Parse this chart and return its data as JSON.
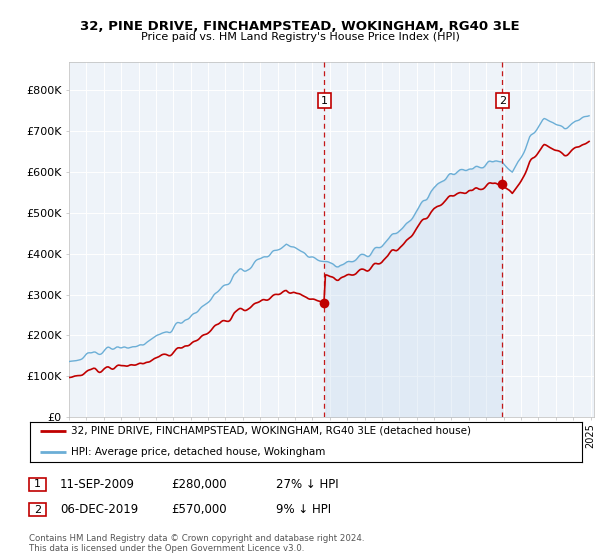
{
  "title": "32, PINE DRIVE, FINCHAMPSTEAD, WOKINGHAM, RG40 3LE",
  "subtitle": "Price paid vs. HM Land Registry's House Price Index (HPI)",
  "ylabel_ticks": [
    "£0",
    "£100K",
    "£200K",
    "£300K",
    "£400K",
    "£500K",
    "£600K",
    "£700K",
    "£800K"
  ],
  "ytick_values": [
    0,
    100000,
    200000,
    300000,
    400000,
    500000,
    600000,
    700000,
    800000
  ],
  "ylim": [
    0,
    870000
  ],
  "xlim_start": 1995.0,
  "xlim_end": 2025.2,
  "hpi_color": "#6baed6",
  "hpi_fill_color": "#c6dbef",
  "price_color": "#c00000",
  "sale1_x": 2009.69,
  "sale1_y": 280000,
  "sale2_x": 2019.92,
  "sale2_y": 570000,
  "legend_label1": "32, PINE DRIVE, FINCHAMPSTEAD, WOKINGHAM, RG40 3LE (detached house)",
  "legend_label2": "HPI: Average price, detached house, Wokingham",
  "table_row1": [
    "1",
    "11-SEP-2009",
    "£280,000",
    "27% ↓ HPI"
  ],
  "table_row2": [
    "2",
    "06-DEC-2019",
    "£570,000",
    "9% ↓ HPI"
  ],
  "footnote": "Contains HM Land Registry data © Crown copyright and database right 2024.\nThis data is licensed under the Open Government Licence v3.0.",
  "background_color": "#ffffff",
  "plot_bg_color": "#eef3f9"
}
